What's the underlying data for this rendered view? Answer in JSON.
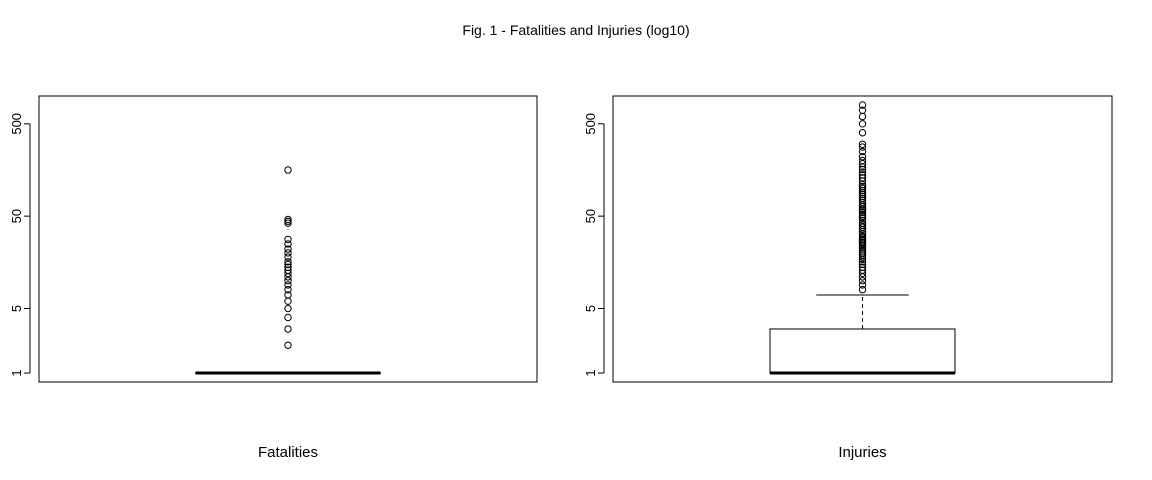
{
  "figure": {
    "title": "Fig. 1 - Fatalities and Injuries (log10)"
  },
  "chart_data": [
    {
      "type": "box",
      "title": "",
      "xlabel": "Fatalities",
      "ylabel": "",
      "y_scale": "log10",
      "ylim": [
        0.8,
        1000
      ],
      "y_ticks": [
        1,
        5,
        50,
        500
      ],
      "y_tick_labels": [
        "1",
        "5",
        "50",
        "500"
      ],
      "grid": false,
      "box": {
        "min": 1,
        "q1": 1,
        "median": 1,
        "q3": 1,
        "max": 1
      },
      "outliers": [
        2,
        3,
        4,
        5,
        6,
        7,
        8,
        9,
        10,
        11,
        12,
        13,
        14,
        15,
        16,
        18,
        20,
        22,
        25,
        28,
        42,
        44,
        46,
        158
      ]
    },
    {
      "type": "box",
      "title": "",
      "xlabel": "Injuries",
      "ylabel": "",
      "y_scale": "log10",
      "ylim": [
        0.8,
        1000
      ],
      "y_ticks": [
        1,
        5,
        50,
        500
      ],
      "y_tick_labels": [
        "1",
        "5",
        "50",
        "500"
      ],
      "grid": false,
      "box": {
        "min": 1,
        "q1": 1,
        "median": 1,
        "q3": 3,
        "max": 7
      },
      "outliers": [
        8,
        9,
        10,
        11,
        12,
        13,
        14,
        15,
        16,
        17,
        18,
        19,
        20,
        21,
        22,
        23,
        24,
        25,
        26,
        27,
        28,
        29,
        30,
        32,
        34,
        36,
        38,
        40,
        42,
        45,
        48,
        50,
        52,
        55,
        58,
        60,
        63,
        66,
        70,
        74,
        78,
        82,
        86,
        90,
        95,
        100,
        105,
        110,
        120,
        130,
        140,
        150,
        160,
        170,
        185,
        200,
        220,
        250,
        280,
        300,
        400,
        500,
        600,
        700,
        800
      ]
    }
  ]
}
